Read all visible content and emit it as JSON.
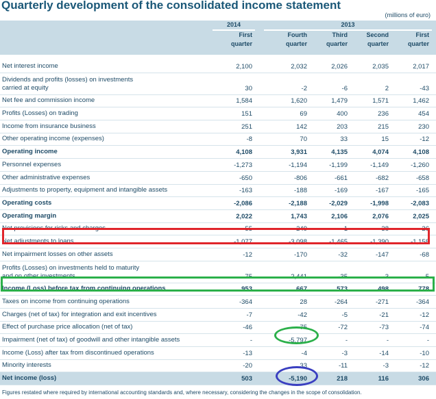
{
  "title": "Quarterly development of the consolidated income statement",
  "unit": "(millions of euro)",
  "years": [
    "2014",
    "2013"
  ],
  "quarters": [
    "First\nquarter",
    "Fourth\nquarter",
    "Third\nquarter",
    "Second\nquarter",
    "First\nquarter"
  ],
  "rows": [
    {
      "label": "Net interest income",
      "values": [
        "2,100",
        "2,032",
        "2,026",
        "2,035",
        "2,017"
      ]
    },
    {
      "label": "Dividends and profits (losses) on investments\ncarried at equity",
      "values": [
        "30",
        "-2",
        "-6",
        "2",
        "-43"
      ],
      "tall": true
    },
    {
      "label": "Net fee and commission income",
      "values": [
        "1,584",
        "1,620",
        "1,479",
        "1,571",
        "1,462"
      ]
    },
    {
      "label": "Profits (Losses) on trading",
      "values": [
        "151",
        "69",
        "400",
        "236",
        "454"
      ]
    },
    {
      "label": "Income from insurance business",
      "values": [
        "251",
        "142",
        "203",
        "215",
        "230"
      ]
    },
    {
      "label": "Other operating income (expenses)",
      "values": [
        "-8",
        "70",
        "33",
        "15",
        "-12"
      ]
    },
    {
      "label": "Operating income",
      "values": [
        "4,108",
        "3,931",
        "4,135",
        "4,074",
        "4,108"
      ],
      "bold": true
    },
    {
      "label": "Personnel expenses",
      "values": [
        "-1,273",
        "-1,194",
        "-1,199",
        "-1,149",
        "-1,260"
      ]
    },
    {
      "label": "Other administrative expenses",
      "values": [
        "-650",
        "-806",
        "-661",
        "-682",
        "-658"
      ]
    },
    {
      "label": "Adjustments to property, equipment and intangible assets",
      "values": [
        "-163",
        "-188",
        "-169",
        "-167",
        "-165"
      ]
    },
    {
      "label": "Operating costs",
      "values": [
        "-2,086",
        "-2,188",
        "-2,029",
        "-1,998",
        "-2,083"
      ],
      "bold": true
    },
    {
      "label": "Operating margin",
      "values": [
        "2,022",
        "1,743",
        "2,106",
        "2,076",
        "2,025"
      ],
      "bold": true
    },
    {
      "label": "Net provisions for risks and charges",
      "values": [
        "-55",
        "-249",
        "-1",
        "-38",
        "-26"
      ]
    },
    {
      "label": "Net adjustments to loans",
      "values": [
        "-1,077",
        "-3,098",
        "-1,465",
        "-1,390",
        "-1,158"
      ]
    },
    {
      "label": "Net impairment losses on other assets",
      "values": [
        "-12",
        "-170",
        "-32",
        "-147",
        "-68"
      ]
    },
    {
      "label": "Profits (Losses) on investments held to maturity\nand on other investments",
      "values": [
        "75",
        "2,441",
        "-35",
        "-3",
        "5"
      ],
      "tall": true
    },
    {
      "label": "Income (Loss) before tax from continuing operations",
      "values": [
        "953",
        "667",
        "573",
        "498",
        "778"
      ],
      "bold": true
    },
    {
      "label": "Taxes on income from continuing operations",
      "values": [
        "-364",
        "28",
        "-264",
        "-271",
        "-364"
      ]
    },
    {
      "label": "Charges (net of tax) for integration and exit incentives",
      "values": [
        "-7",
        "-42",
        "-5",
        "-21",
        "-12"
      ]
    },
    {
      "label": "Effect of purchase price allocation (net of tax)",
      "values": [
        "-46",
        "-75",
        "-72",
        "-73",
        "-74"
      ]
    },
    {
      "label": "Impairment (net of tax) of goodwill and other intangible assets",
      "values": [
        "-",
        "-5,797",
        "-",
        "-",
        "-"
      ]
    },
    {
      "label": "Income (Loss) after tax from discontinued operations",
      "values": [
        "-13",
        "-4",
        "-3",
        "-14",
        "-10"
      ]
    },
    {
      "label": "Minority interests",
      "values": [
        "-20",
        "33",
        "-11",
        "-3",
        "-12"
      ]
    },
    {
      "label": "Net income (loss)",
      "values": [
        "503",
        "-5,190",
        "218",
        "116",
        "306"
      ],
      "bold": true,
      "hl": true
    }
  ],
  "footnote": "Figures restated where required by international accounting standards and, where necessary, considering the changes in the scope of consolidation.",
  "colors": {
    "red_box": "#e0252b",
    "green_box": "#2bb04a",
    "blue_ellipse": "#3a3fc0"
  }
}
